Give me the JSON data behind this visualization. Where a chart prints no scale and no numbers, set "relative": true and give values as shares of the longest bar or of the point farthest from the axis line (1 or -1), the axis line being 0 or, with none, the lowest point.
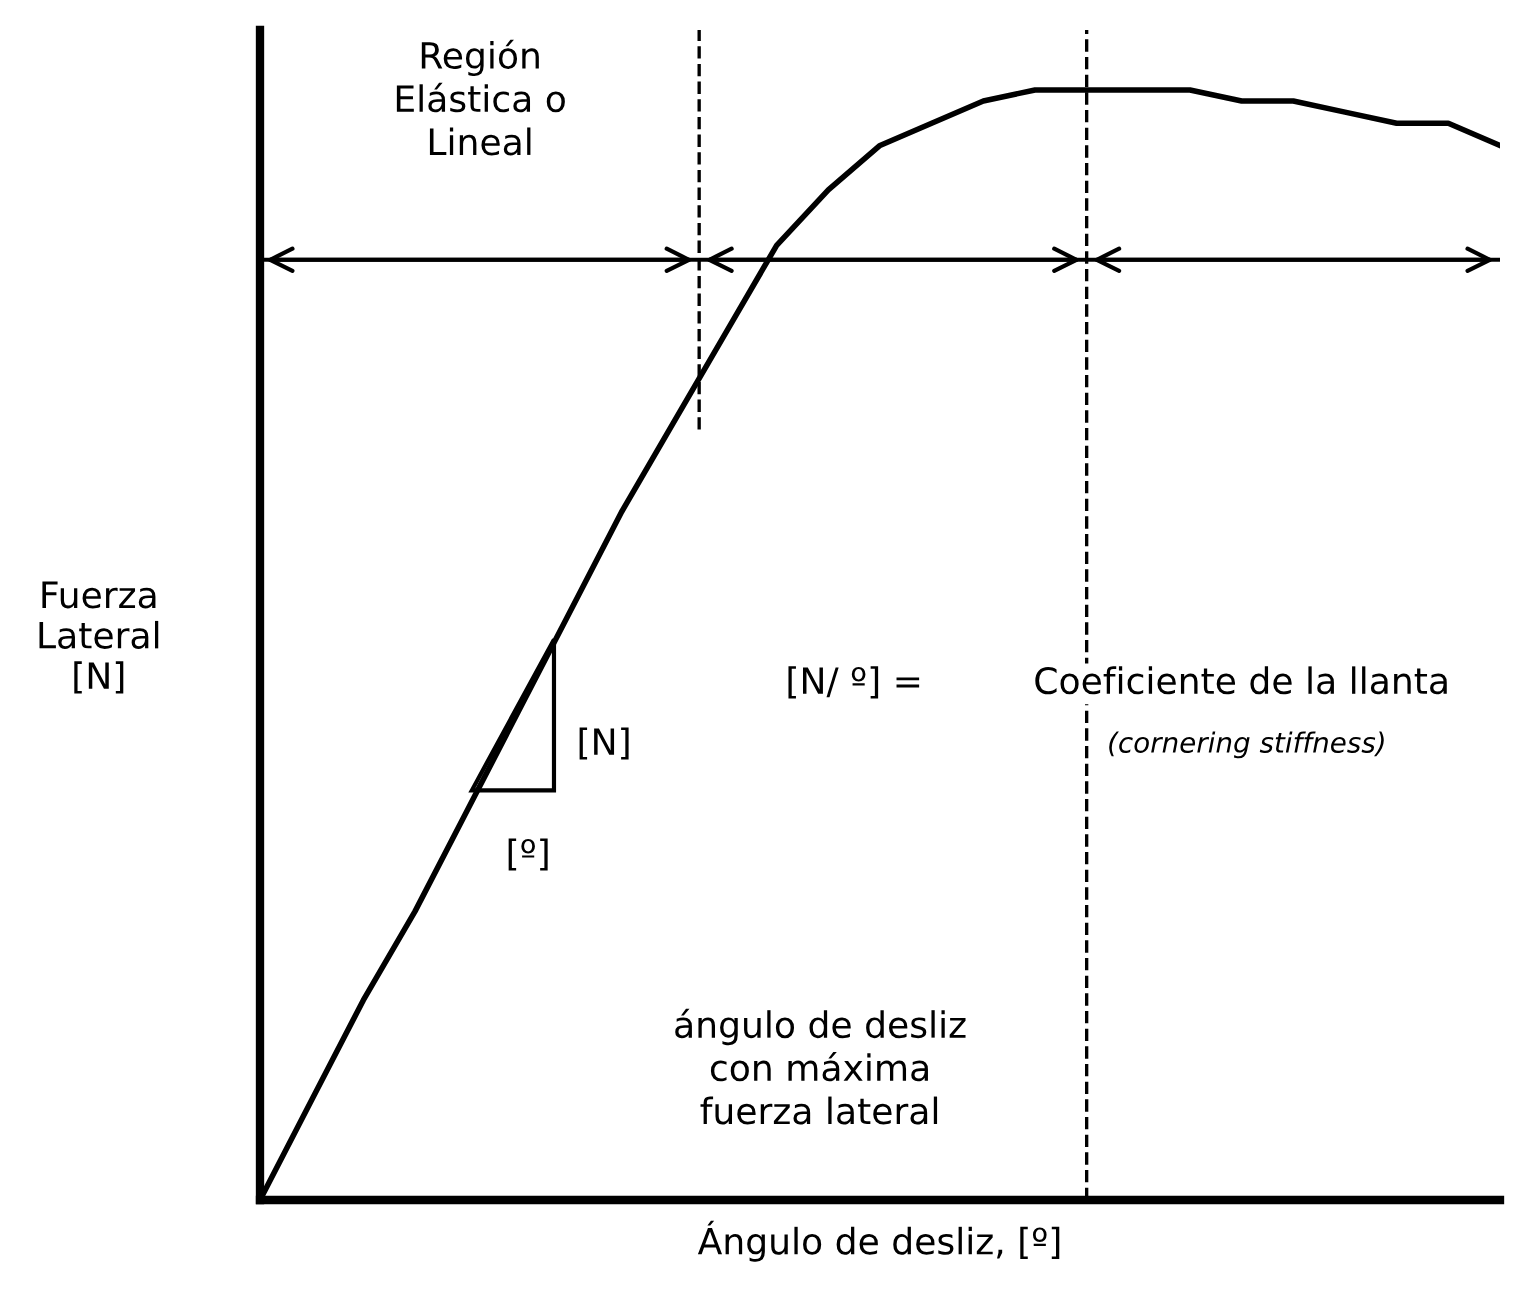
{
  "chart_data": {
    "type": "line",
    "relative": true,
    "xlabel": "Ángulo de desliz, [º]",
    "ylabel": "Fuerza\nLateral\n[N]",
    "categories": [
      null,
      null,
      null,
      null,
      null,
      null,
      null,
      null,
      null,
      null,
      null,
      null,
      null,
      null,
      null,
      null,
      null,
      null,
      null,
      null,
      null,
      null,
      null,
      null,
      null
    ],
    "series": [
      {
        "color": "#000000",
        "values": [
          0,
          0.09,
          0.18,
          0.26,
          0.35,
          0.44,
          0.53,
          0.62,
          0.7,
          0.78,
          0.86,
          0.91,
          0.95,
          0.97,
          0.99,
          1.0,
          1.0,
          1.0,
          1.0,
          0.99,
          0.99,
          0.98,
          0.97,
          0.97,
          0.95
        ]
      }
    ],
    "ref_lines": [
      {
        "axis": "y",
        "value": 0.847,
        "line_style": "solid",
        "color": "#000000"
      }
    ],
    "annotations": [
      "Región\nElástica o\nLineal",
      "[N/ º] =",
      "Coeficiente de la llanta",
      "(cornering stiffness)",
      "[N]",
      "[º]",
      "ángulo de desliz\ncon máxima\nfuerza lateral"
    ],
    "grid": false,
    "marker": "none",
    "line_style": "solid"
  }
}
